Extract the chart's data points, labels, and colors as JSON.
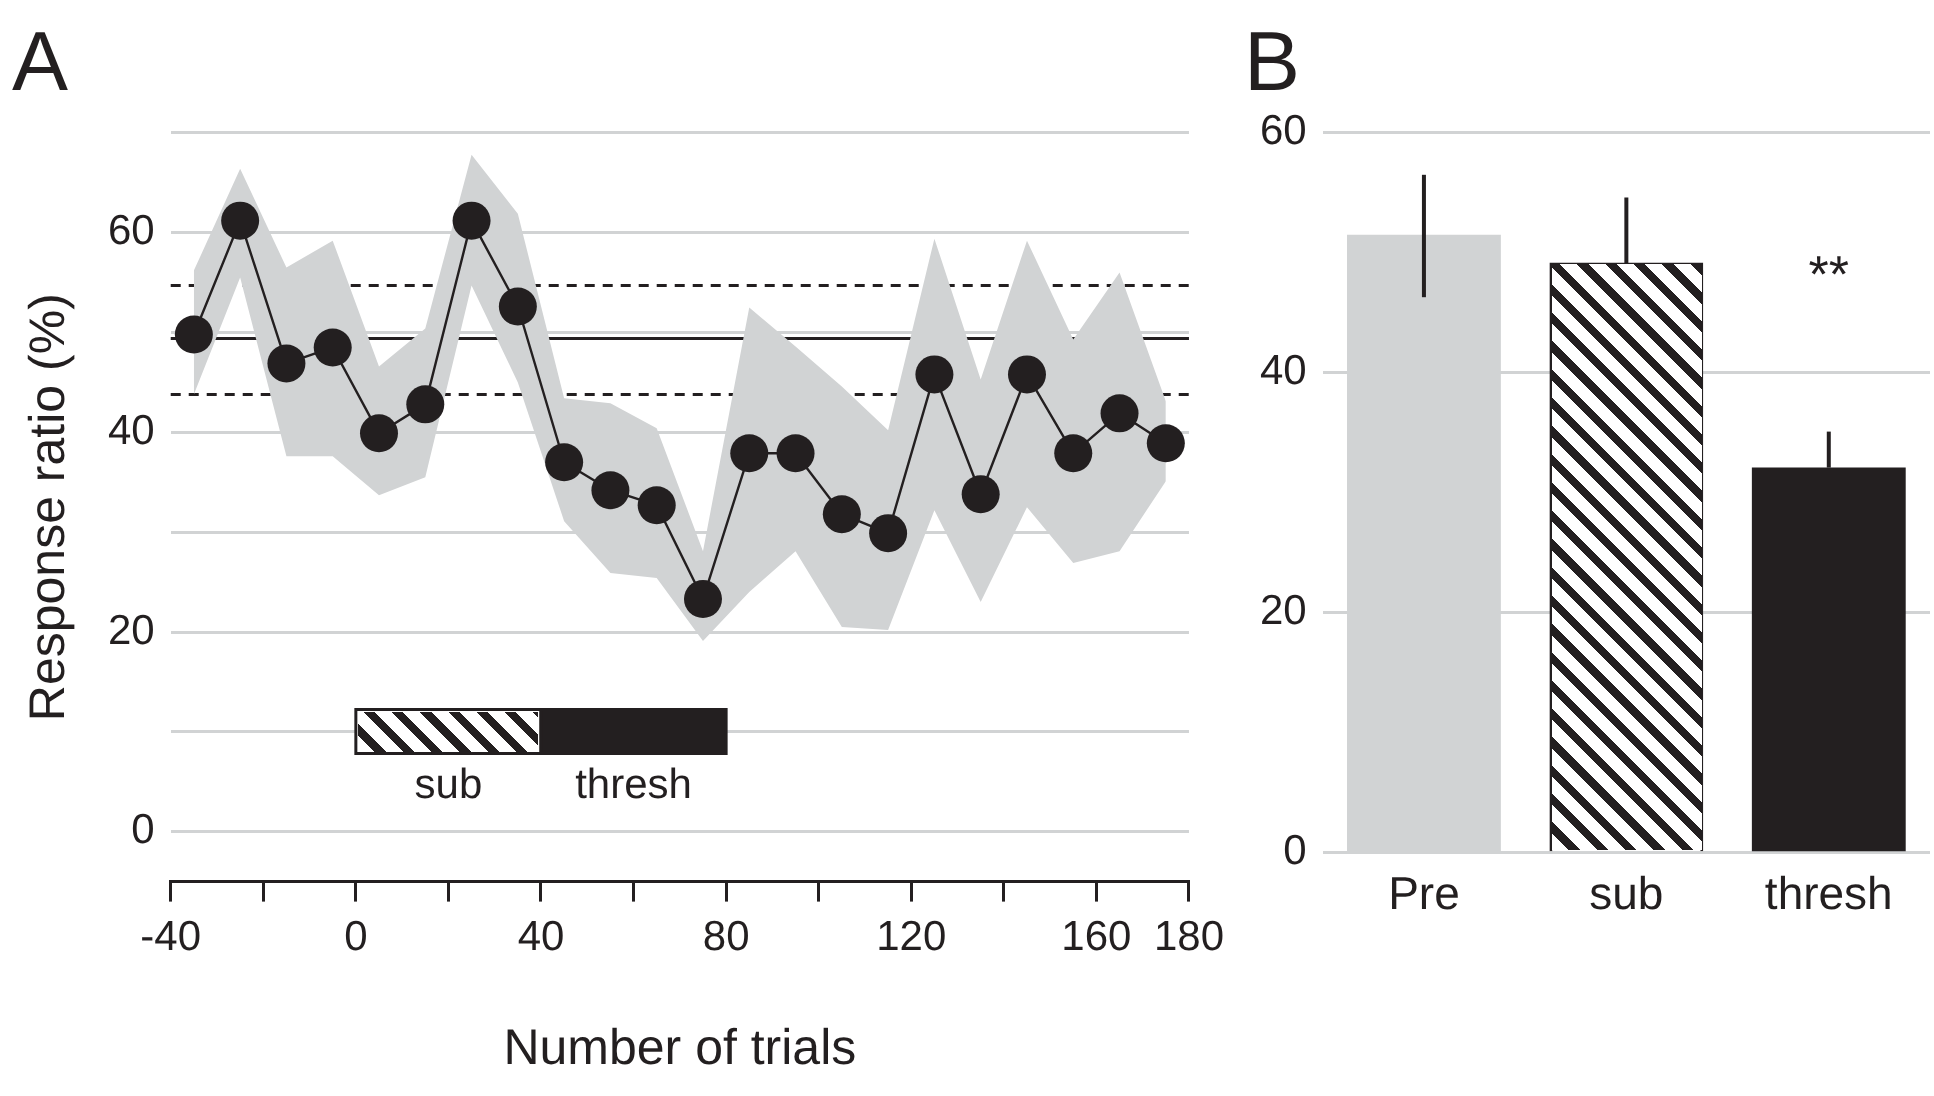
{
  "chart_data": [
    {
      "type": "line",
      "title": "A",
      "xlabel": "Number of trials",
      "ylabel": "Response ratio (%)",
      "x": [
        -35,
        -25,
        -15,
        -5,
        5,
        15,
        25,
        35,
        45,
        55,
        65,
        75,
        85,
        95,
        105,
        115,
        125,
        135,
        145,
        155,
        165,
        175
      ],
      "series": [
        {
          "color": "#231f20",
          "values": [
            49.8,
            61.2,
            46.9,
            48.5,
            39.9,
            42.8,
            61.2,
            52.6,
            37.0,
            34.2,
            32.7,
            23.3,
            37.9,
            37.9,
            31.8,
            29.9,
            45.8,
            33.8,
            45.8,
            37.9,
            41.9,
            38.9
          ],
          "lower": [
            43.8,
            55.5,
            37.6,
            37.6,
            33.7,
            35.5,
            54.7,
            45.0,
            31.1,
            25.9,
            25.4,
            19.1,
            24.0,
            28.1,
            20.5,
            20.2,
            32.2,
            23.0,
            32.5,
            26.9,
            28.1,
            35.1
          ],
          "upper": [
            56.2,
            66.4,
            56.5,
            59.2,
            46.6,
            50.4,
            67.8,
            61.9,
            43.4,
            42.9,
            40.4,
            28.1,
            52.5,
            48.6,
            44.6,
            40.2,
            59.4,
            45.3,
            59.2,
            49.3,
            56.0,
            43.1
          ]
        }
      ],
      "xlim": [
        -40,
        180
      ],
      "xticks": [
        -40,
        {
          "value": -20,
          "label": null
        },
        0,
        {
          "value": 20,
          "label": null
        },
        40,
        {
          "value": 60,
          "label": null
        },
        80,
        {
          "value": 100,
          "label": null
        },
        120,
        {
          "value": 140,
          "label": null
        },
        160,
        180
      ],
      "ylim": [
        -5,
        70
      ],
      "yticks": [
        0,
        {
          "value": 10,
          "label": null
        },
        20,
        {
          "value": 30,
          "label": null
        },
        40,
        {
          "value": 50,
          "label": null
        },
        60,
        {
          "value": 70,
          "label": null
        }
      ],
      "ref_lines": [
        {
          "axis": "y",
          "value": 49.4,
          "color": "#231f20",
          "line_style": "solid"
        },
        {
          "axis": "y",
          "value": 54.7,
          "color": "#231f20",
          "line_style": "dashed"
        },
        {
          "axis": "y",
          "value": 43.8,
          "color": "#231f20",
          "line_style": "dashed"
        }
      ],
      "bands": [
        {
          "axis": "x",
          "from": 0,
          "to": 40,
          "label": "sub",
          "color": "#ffffff"
        },
        {
          "axis": "x",
          "from": 40,
          "to": 80,
          "label": "thresh",
          "color": "#231f20"
        }
      ],
      "grid": "y",
      "marker": "circle",
      "line_style": "solid"
    },
    {
      "type": "bar",
      "title": "B",
      "categories": [
        "Pre",
        "sub",
        "thresh"
      ],
      "values": [
        51.5,
        49.2,
        32.1
      ],
      "colors": [
        "#d1d3d4",
        "#ffffff",
        "#231f20"
      ],
      "errors": [
        [
          46.3,
          56.5
        ],
        [
          43.9,
          54.6
        ],
        [
          32.1,
          35.1
        ]
      ],
      "ylim": [
        0,
        60
      ],
      "yticks": [
        0,
        20,
        40,
        60
      ],
      "grid": "y",
      "annotations": [
        "**"
      ]
    }
  ]
}
